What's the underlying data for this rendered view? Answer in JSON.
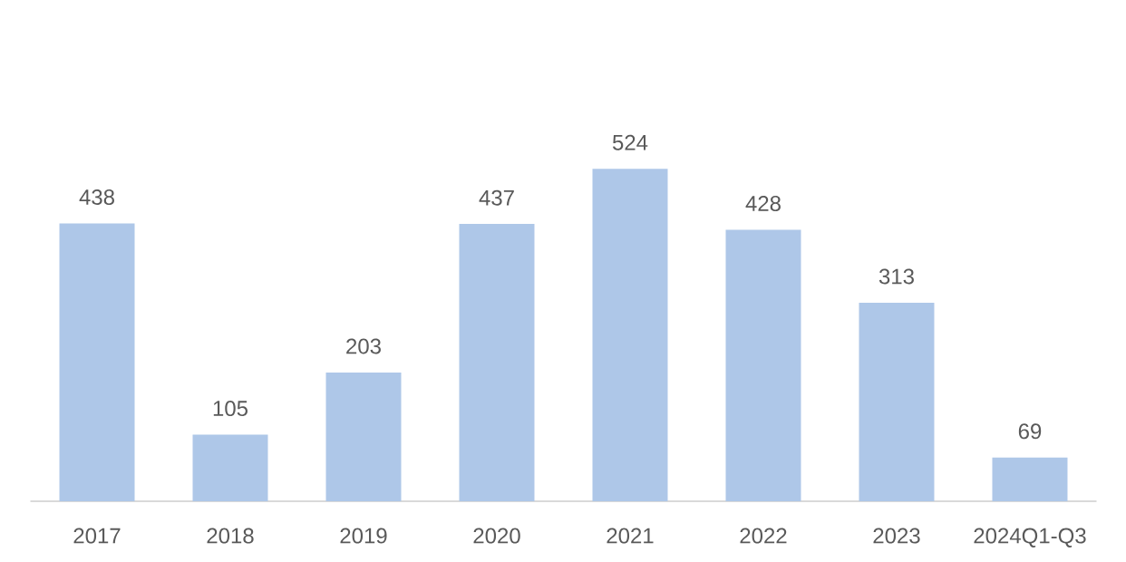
{
  "chart_data": {
    "type": "bar",
    "categories": [
      "2017",
      "2018",
      "2019",
      "2020",
      "2021",
      "2022",
      "2023",
      "2024Q1-Q3"
    ],
    "values": [
      438,
      105,
      203,
      437,
      524,
      428,
      313,
      69
    ],
    "color": "#aec7e8",
    "data_labels": true
  }
}
